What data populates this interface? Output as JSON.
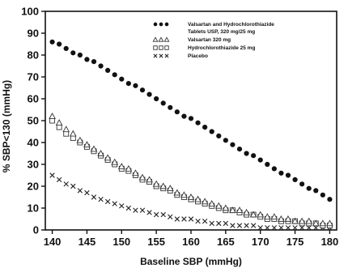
{
  "chart_data": {
    "type": "scatter",
    "xlabel": "Baseline SBP (mmHg)",
    "ylabel": "% SBP<130 (mmHg)",
    "xlim": [
      139,
      181
    ],
    "ylim": [
      0,
      100
    ],
    "xticks": [
      140,
      145,
      150,
      155,
      160,
      165,
      170,
      175,
      180
    ],
    "yticks": [
      0,
      10,
      20,
      30,
      40,
      50,
      60,
      70,
      80,
      90,
      100
    ],
    "x": [
      140,
      141,
      142,
      143,
      144,
      145,
      146,
      147,
      148,
      149,
      150,
      151,
      152,
      153,
      154,
      155,
      156,
      157,
      158,
      159,
      160,
      161,
      162,
      163,
      164,
      165,
      166,
      167,
      168,
      169,
      170,
      171,
      172,
      173,
      174,
      175,
      176,
      177,
      178,
      179,
      180
    ],
    "legend_position": "top-right",
    "series": [
      {
        "name": "Valsartan and Hydrochlorothiazide Tablets USP, 320 mg/25 mg",
        "marker": "dot",
        "color": "#111111",
        "values": [
          86,
          85,
          83,
          81,
          80,
          78,
          77,
          75,
          73,
          71,
          69,
          67,
          66,
          64,
          62,
          60,
          58,
          56,
          54,
          52,
          51,
          49,
          47,
          45,
          43,
          41,
          39,
          37,
          35,
          34,
          32,
          30,
          28,
          26,
          25,
          23,
          21,
          19,
          18,
          16,
          14
        ]
      },
      {
        "name": "Valsartan 320 mg",
        "marker": "triangle",
        "color": "#111111",
        "values": [
          52,
          49,
          46,
          44,
          41,
          39,
          37,
          35,
          33,
          31,
          29,
          28,
          26,
          24,
          23,
          21,
          20,
          19,
          17,
          16,
          15,
          14,
          13,
          12,
          11,
          10,
          9,
          9,
          8,
          7,
          7,
          6,
          6,
          5,
          5,
          4,
          4,
          4,
          3,
          3,
          3
        ]
      },
      {
        "name": "Hydrochlorothiazide 25 mg",
        "marker": "square",
        "color": "#111111",
        "values": [
          50,
          47,
          44,
          42,
          40,
          38,
          36,
          34,
          32,
          30,
          28,
          27,
          25,
          23,
          22,
          20,
          19,
          18,
          16,
          15,
          14,
          13,
          12,
          11,
          10,
          9,
          9,
          8,
          7,
          7,
          6,
          5,
          5,
          4,
          4,
          4,
          3,
          3,
          3,
          2,
          2
        ]
      },
      {
        "name": "Placebo",
        "marker": "cross",
        "color": "#111111",
        "values": [
          25,
          23,
          21,
          20,
          18,
          17,
          15,
          14,
          13,
          12,
          11,
          10,
          9,
          9,
          8,
          7,
          7,
          6,
          5,
          5,
          5,
          4,
          4,
          3,
          3,
          3,
          2,
          2,
          2,
          2,
          1,
          1,
          1,
          1,
          1,
          1,
          1,
          1,
          1,
          1,
          1
        ]
      }
    ],
    "legend_lines": [
      [
        "Valsartan and Hydrochlorothiazide",
        "Tablets USP, 320 mg/25 mg"
      ],
      [
        "Valsartan 320 mg"
      ],
      [
        "Hydrochlorothiazide 25 mg"
      ],
      [
        "Placebo"
      ]
    ]
  }
}
